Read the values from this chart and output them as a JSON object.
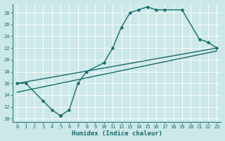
{
  "xlabel": "Humidex (Indice chaleur)",
  "ylabel": "",
  "bg_color": "#cce8e8",
  "grid_color": "#ffffff",
  "line_color": "#1a6b6b",
  "xlim": [
    -0.5,
    23.5
  ],
  "ylim": [
    9.5,
    29.5
  ],
  "xticks": [
    0,
    1,
    2,
    3,
    4,
    5,
    6,
    7,
    8,
    9,
    10,
    11,
    12,
    13,
    14,
    15,
    16,
    17,
    18,
    19,
    20,
    21,
    22,
    23
  ],
  "yticks": [
    10,
    12,
    14,
    16,
    18,
    20,
    22,
    24,
    26,
    28
  ],
  "curve_x": [
    0,
    1,
    3,
    4,
    5,
    5,
    6,
    7,
    8,
    10,
    11,
    12,
    13,
    14,
    15,
    16,
    17,
    19,
    21,
    22,
    23
  ],
  "curve_y": [
    16,
    16,
    13,
    11.5,
    10.5,
    10.5,
    11.5,
    16,
    18,
    19.5,
    22,
    25.5,
    28,
    28.5,
    29,
    28.5,
    28.5,
    28.5,
    23.5,
    23,
    22
  ],
  "line2_x": [
    0,
    23
  ],
  "line2_y": [
    16,
    22
  ],
  "line3_x": [
    0,
    23
  ],
  "line3_y": [
    14.5,
    21.5
  ],
  "markersize": 2.5,
  "linewidth": 1.0
}
